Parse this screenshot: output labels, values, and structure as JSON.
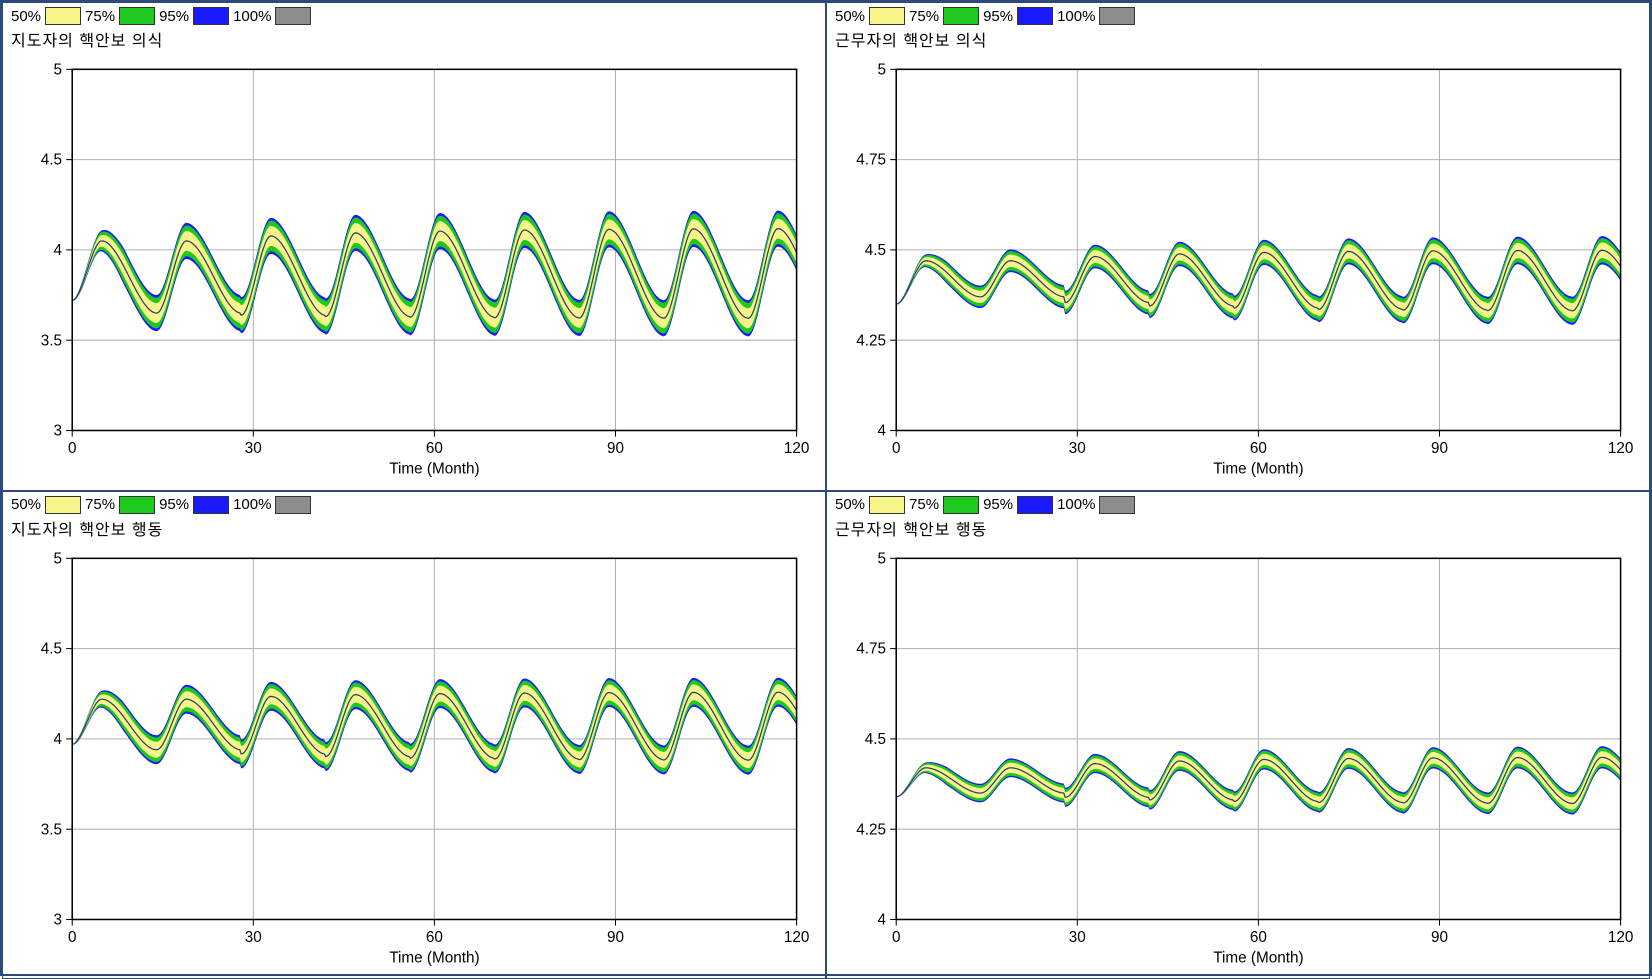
{
  "legend": {
    "items": [
      {
        "label": "50%",
        "color": "#f7f58a"
      },
      {
        "label": "75%",
        "color": "#1ec91e"
      },
      {
        "label": "95%",
        "color": "#1a1aff"
      },
      {
        "label": "100%",
        "color": "#8c8c8c"
      }
    ]
  },
  "common": {
    "xlabel": "Time (Month)",
    "xlim": [
      0,
      120
    ],
    "xticks": [
      0,
      30,
      60,
      90,
      120
    ],
    "grid_color": "#b0b0b0",
    "axis_color": "#000000",
    "background": "#ffffff",
    "label_fontsize": 15,
    "tick_fontsize": 15,
    "band_colors": {
      "outer": "#1a1aff",
      "mid": "#1ec91e",
      "inner": "#f7f58a",
      "median": "#2b3a6b"
    }
  },
  "panels": [
    {
      "id": "tl",
      "title": "지도자의 핵안보 의식",
      "ylim": [
        3,
        5
      ],
      "yticks": [
        3,
        3.5,
        4,
        4.5,
        5
      ],
      "wave": {
        "start": 3.72,
        "initPeak": 4.05,
        "initTrough": 3.65,
        "peak": 4.12,
        "trough": 3.62,
        "period": 14,
        "band": 0.1,
        "grow": 0.0,
        "attackFrac": 0.35
      }
    },
    {
      "id": "tr",
      "title": "근무자의 핵안보 의식",
      "ylim": [
        4,
        5
      ],
      "yticks": [
        4,
        4.25,
        4.5,
        4.75,
        5
      ],
      "wave": {
        "start": 4.35,
        "initPeak": 4.47,
        "initTrough": 4.37,
        "peak": 4.5,
        "trough": 4.33,
        "period": 14,
        "band": 0.03,
        "grow": 0.04,
        "attackFrac": 0.35
      }
    },
    {
      "id": "bl",
      "title": "지도자의 핵안보 행동",
      "ylim": [
        3,
        5
      ],
      "yticks": [
        3,
        3.5,
        4,
        4.5,
        5
      ],
      "wave": {
        "start": 3.97,
        "initPeak": 4.22,
        "initTrough": 3.94,
        "peak": 4.26,
        "trough": 3.88,
        "period": 14,
        "band": 0.08,
        "grow": 0.0,
        "attackFrac": 0.35
      }
    },
    {
      "id": "br",
      "title": "근무자의 핵안보 행동",
      "ylim": [
        4,
        5
      ],
      "yticks": [
        4,
        4.25,
        4.5,
        4.75,
        5
      ],
      "wave": {
        "start": 4.34,
        "initPeak": 4.42,
        "initTrough": 4.35,
        "peak": 4.45,
        "trough": 4.32,
        "period": 14,
        "band": 0.025,
        "grow": 0.03,
        "attackFrac": 0.35
      }
    }
  ]
}
